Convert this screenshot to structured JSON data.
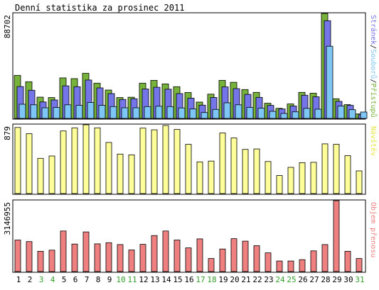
{
  "title": "Denní statistika za prosinec 2011",
  "colors": {
    "visits": "#77b23a",
    "pages": "#7575ea",
    "files": "#7ec6f6",
    "visitors": "#ffff99",
    "volume": "#f08080",
    "weekday_label": "#000000",
    "weekend_label": "#33a02c"
  },
  "chart_data": {
    "type": "bar",
    "title": "Denní statistika za prosinec 2011",
    "categories": [
      "1",
      "2",
      "3",
      "4",
      "5",
      "6",
      "7",
      "8",
      "9",
      "10",
      "11",
      "12",
      "13",
      "14",
      "15",
      "16",
      "17",
      "18",
      "19",
      "20",
      "21",
      "22",
      "23",
      "24",
      "25",
      "26",
      "27",
      "28",
      "29",
      "30",
      "31"
    ],
    "weekend_days": [
      "3",
      "4",
      "10",
      "11",
      "17",
      "18",
      "24",
      "25",
      "31"
    ],
    "panels": [
      {
        "id": "requests",
        "ymax": 88702,
        "ymax_label": "88702",
        "right_label_parts": [
          {
            "text": "Stránek",
            "color": "#7575ea"
          },
          {
            "text": "/",
            "color": "#000000"
          },
          {
            "text": "Souborů",
            "color": "#7ec6f6"
          },
          {
            "text": "/",
            "color": "#000000"
          },
          {
            "text": "Přístupů",
            "color": "#77b23a"
          }
        ],
        "series": [
          {
            "name": "Přístupů",
            "values": [
              36400,
              31000,
              18000,
              17600,
              34200,
              33600,
              38200,
              29800,
              24000,
              17600,
              17900,
              29800,
              32200,
              29200,
              26800,
              21900,
              13800,
              20500,
              32200,
              30500,
              24400,
              22000,
              12800,
              8500,
              12200,
              22000,
              21300,
              88702,
              16600,
              11600,
              3800
            ]
          },
          {
            "name": "Stránek",
            "values": [
              26900,
              23800,
              13900,
              15600,
              27500,
              26800,
              32400,
              25800,
              21000,
              16000,
              16600,
              24900,
              26300,
              24700,
              21000,
              17100,
              11200,
              17700,
              26600,
              25200,
              20300,
              17800,
              11000,
              8000,
              10500,
              19600,
              18300,
              82600,
              14400,
              11000,
              3200
            ]
          },
          {
            "name": "Souborů",
            "values": [
              12000,
              11500,
              9000,
              9200,
              11500,
              11000,
              13500,
              11000,
              10000,
              9000,
              9000,
              10000,
              10300,
              10000,
              8900,
              8000,
              5000,
              7600,
              13200,
              11500,
              9300,
              8700,
              6000,
              4200,
              5600,
              8500,
              7800,
              61000,
              10400,
              7400,
              5400
            ]
          }
        ]
      },
      {
        "id": "visitors",
        "ymax": 879,
        "ymax_label": "879",
        "right_label_parts": [
          {
            "text": "Návštěv",
            "color": "#e6e640"
          }
        ],
        "series": [
          {
            "name": "Návštěv",
            "values": [
              845,
              765,
              450,
              480,
              800,
              840,
              879,
              840,
              653,
              505,
              495,
              836,
              815,
              870,
              820,
              630,
              405,
              415,
              775,
              710,
              565,
              570,
              410,
              230,
              335,
              395,
              400,
              635,
              630,
              485,
              290
            ]
          }
        ]
      },
      {
        "id": "volume",
        "ymax": 3146955,
        "ymax_label": "3146955",
        "right_label_parts": [
          {
            "text": "Objem přenosu",
            "color": "#f08080"
          }
        ],
        "series": [
          {
            "name": "Objem přenosu",
            "values": [
              1400000,
              1330000,
              900000,
              950000,
              1800000,
              1220000,
              1760000,
              1230000,
              1280000,
              1200000,
              960000,
              1210000,
              1600000,
              1800000,
              1400000,
              1050000,
              1450000,
              580000,
              1000000,
              1460000,
              1350000,
              1150000,
              830000,
              470000,
              470000,
              530000,
              920000,
              1200000,
              3146955,
              900000,
              580000
            ]
          }
        ]
      }
    ]
  }
}
